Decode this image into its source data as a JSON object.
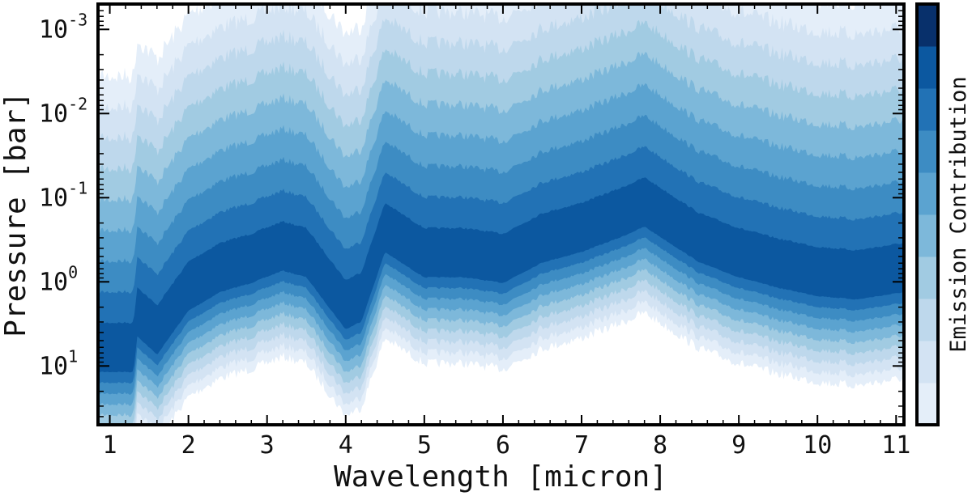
{
  "chart_data": {
    "type": "heatmap",
    "title": "",
    "xlabel": "Wavelength [micron]",
    "ylabel": "Pressure [bar]",
    "colorbar_label": "Emission Contribution",
    "xlim": [
      0.85,
      11.1
    ],
    "ylim": [
      50,
      0.0005
    ],
    "y_scale": "log",
    "y_inverted": true,
    "x_ticks": [
      {
        "value": 1,
        "label": "1"
      },
      {
        "value": 2,
        "label": "2"
      },
      {
        "value": 3,
        "label": "3"
      },
      {
        "value": 4,
        "label": "4"
      },
      {
        "value": 5,
        "label": "5"
      },
      {
        "value": 6,
        "label": "6"
      },
      {
        "value": 7,
        "label": "7"
      },
      {
        "value": 8,
        "label": "8"
      },
      {
        "value": 9,
        "label": "9"
      },
      {
        "value": 10,
        "label": "10"
      },
      {
        "value": 11,
        "label": "11"
      }
    ],
    "y_ticks": [
      {
        "value": 0.001,
        "base": "10",
        "exp": "-3"
      },
      {
        "value": 0.01,
        "base": "10",
        "exp": "-2"
      },
      {
        "value": 0.1,
        "base": "10",
        "exp": "-1"
      },
      {
        "value": 1,
        "base": "10",
        "exp": "0"
      },
      {
        "value": 10,
        "base": "10",
        "exp": "1"
      }
    ],
    "contour_colors": [
      "#e4eef9",
      "#d3e3f3",
      "#bed8ec",
      "#a1cbe2",
      "#7db8da",
      "#5ba3d0",
      "#3d8cc3",
      "#2272b5",
      "#0c58a0",
      "#08306b"
    ],
    "peak_pressure_profile": {
      "wavelength": [
        0.85,
        1.0,
        1.3,
        1.35,
        1.6,
        2.0,
        2.4,
        2.8,
        3.2,
        3.5,
        4.0,
        4.2,
        4.5,
        4.7,
        5.0,
        5.5,
        6.0,
        6.5,
        7.0,
        7.5,
        7.8,
        8.5,
        9.0,
        9.5,
        10.0,
        10.5,
        11.1
      ],
      "pressure_bar": [
        8,
        8,
        8,
        3,
        5,
        1.5,
        0.9,
        0.7,
        0.5,
        0.6,
        2.5,
        2,
        0.3,
        0.4,
        0.6,
        0.6,
        0.7,
        0.4,
        0.3,
        0.2,
        0.15,
        0.4,
        0.6,
        0.8,
        1.0,
        1.1,
        0.9
      ]
    }
  }
}
